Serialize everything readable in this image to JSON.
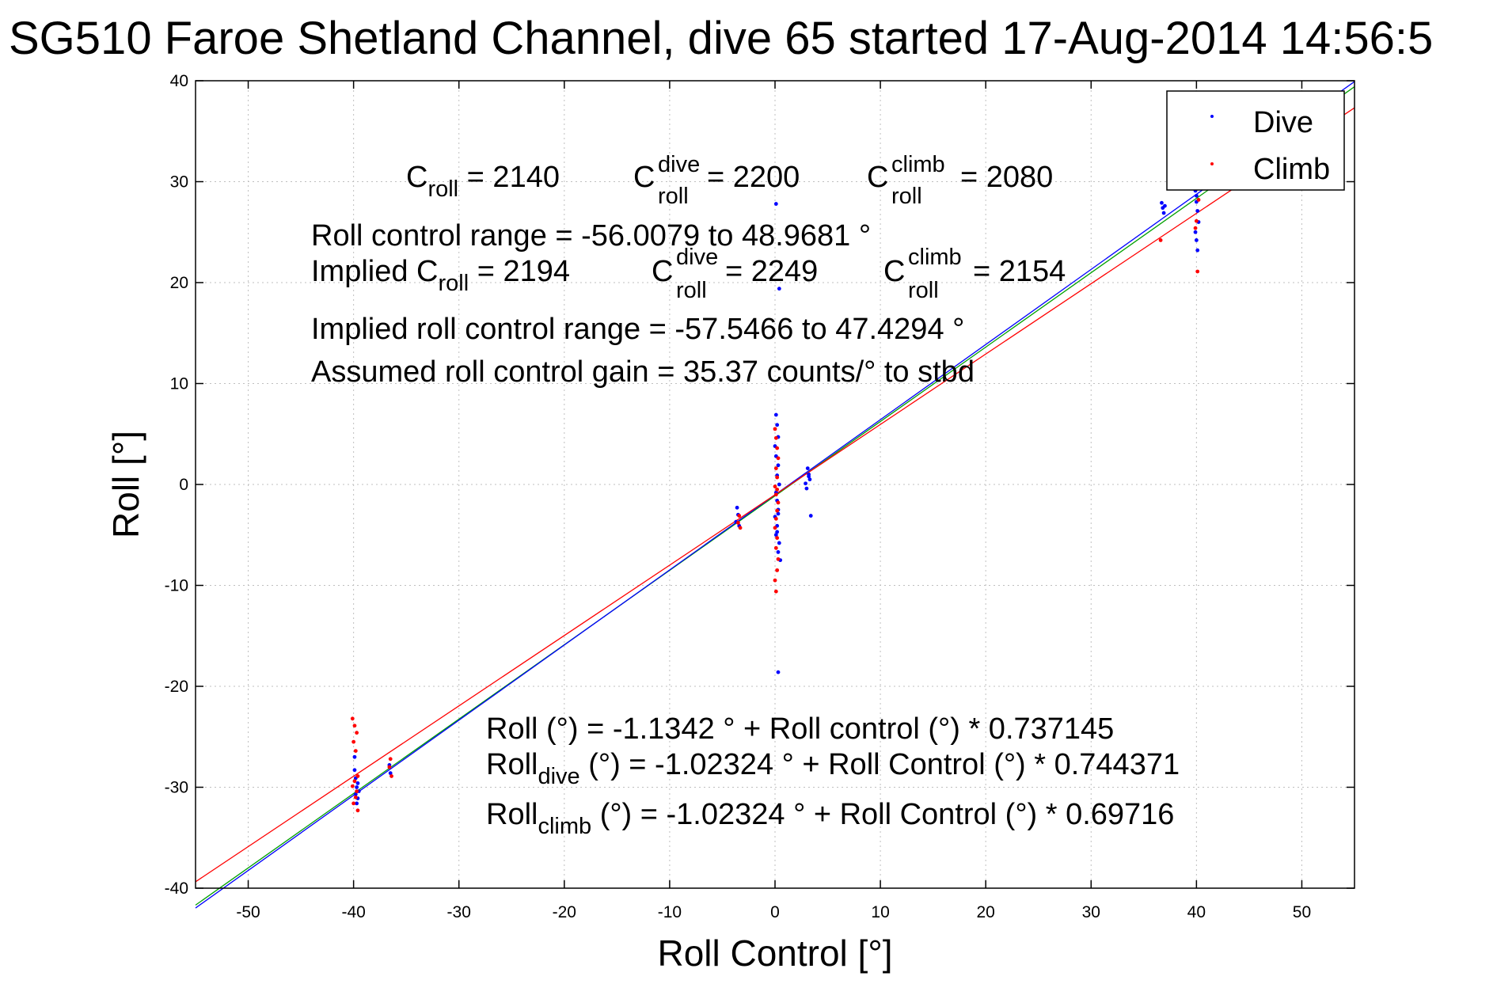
{
  "chart_data": {
    "type": "scatter",
    "title": "SG510 Faroe Shetland Channel, dive 65 started 17-Aug-2014 14:56:5",
    "xlabel": "Roll Control [°]",
    "ylabel": "Roll [°]",
    "xlim": [
      -55,
      55
    ],
    "ylim": [
      -40,
      40
    ],
    "xticks": [
      -50,
      -40,
      -30,
      -20,
      -10,
      0,
      10,
      20,
      30,
      40,
      50
    ],
    "yticks": [
      -40,
      -30,
      -20,
      -10,
      0,
      10,
      20,
      30,
      40
    ],
    "grid": true,
    "legend": {
      "placement": "top-right",
      "entries": [
        "Dive",
        "Climb"
      ]
    },
    "colors": {
      "dive": "#0000ff",
      "climb": "#ff0000",
      "combined_fit": "#00a000"
    },
    "series": [
      {
        "name": "Dive",
        "x": [
          -39.9,
          -39.8,
          -39.6,
          -39.7,
          -39.5,
          -39.8,
          -39.6,
          -39.7,
          -39.9,
          -36.6,
          -36.5,
          -3.6,
          -3.5,
          -3.7,
          -3.4,
          0.1,
          0.2,
          0.3,
          0.0,
          0.1,
          0.3,
          0.2,
          0.4,
          0.1,
          0.2,
          0.3,
          0.0,
          0.2,
          0.1,
          0.4,
          0.3,
          0.5,
          0.2,
          0.3,
          0.1,
          0.4,
          0.3,
          3.1,
          3.2,
          3.3,
          2.9,
          3.0,
          3.4,
          3.2,
          36.7,
          36.8,
          36.9,
          37.0,
          39.8,
          39.9,
          40.0,
          40.1,
          40.2,
          39.9,
          40.0,
          40.1,
          40.0,
          39.9
        ],
        "y": [
          -28.3,
          -29.1,
          -29.6,
          -30.0,
          -30.4,
          -30.7,
          -31.1,
          -31.6,
          -27.0,
          -27.8,
          -28.6,
          -2.3,
          -3.0,
          -3.7,
          -4.1,
          6.9,
          5.9,
          4.7,
          3.8,
          2.8,
          1.9,
          0.9,
          0.0,
          -0.8,
          -1.6,
          -2.5,
          -3.2,
          -4.1,
          -5.0,
          -5.8,
          -6.7,
          -7.5,
          -4.7,
          -2.9,
          27.8,
          19.4,
          -18.6,
          1.6,
          1.0,
          0.5,
          0.1,
          -0.4,
          -3.1,
          0.8,
          27.9,
          27.4,
          26.9,
          27.6,
          31.2,
          29.1,
          28.0,
          27.1,
          26.0,
          25.0,
          24.2,
          23.2,
          28.6,
          30.3
        ]
      },
      {
        "name": "Climb",
        "x": [
          -40.1,
          -39.9,
          -39.7,
          -40.0,
          -39.8,
          -39.6,
          -39.9,
          -40.1,
          -39.7,
          -39.8,
          -40.0,
          -39.6,
          -36.5,
          -36.6,
          -36.4,
          -3.4,
          -3.5,
          -3.3,
          0.0,
          0.1,
          0.2,
          0.3,
          0.1,
          0.2,
          0.0,
          0.1,
          0.3,
          0.2,
          0.1,
          0.0,
          0.2,
          0.1,
          0.3,
          0.2,
          0.0,
          0.1,
          0.2,
          36.6,
          40.1,
          40.0,
          39.9,
          40.2
        ],
        "y": [
          -23.2,
          -23.9,
          -24.6,
          -25.5,
          -26.4,
          -28.9,
          -29.4,
          -29.9,
          -30.4,
          -31.0,
          -31.6,
          -32.3,
          -27.2,
          -28.0,
          -28.9,
          -3.1,
          -3.8,
          -4.3,
          5.5,
          4.6,
          3.6,
          2.6,
          1.6,
          0.7,
          -0.2,
          -1.0,
          -1.8,
          -2.6,
          -3.4,
          -4.3,
          -5.3,
          -6.3,
          -7.4,
          -8.5,
          -9.5,
          -10.6,
          -0.5,
          24.2,
          21.1,
          26.1,
          25.4,
          28.2
        ]
      }
    ],
    "fit_lines": [
      {
        "name": "Roll fit",
        "color": "green",
        "intercept": -1.1342,
        "slope": 0.737145
      },
      {
        "name": "Roll dive fit",
        "color": "blue",
        "intercept": -1.02324,
        "slope": 0.744371
      },
      {
        "name": "Roll climb fit",
        "color": "red",
        "intercept": -1.02324,
        "slope": 0.69716
      }
    ],
    "annotations": {
      "c_roll": {
        "base": "C",
        "sub": "roll",
        "rest": " = 2140"
      },
      "c_roll_dive": {
        "base": "C",
        "sup": "dive",
        "sub": "roll",
        "rest": " = 2200"
      },
      "c_roll_climb": {
        "base": "C",
        "sup": "climb",
        "sub": "roll",
        "rest": " = 2080"
      },
      "roll_control_range": "Roll control range = -56.0079 to 48.9681 °",
      "implied_c_roll": {
        "base": "Implied C",
        "sub": "roll",
        "rest": " = 2194"
      },
      "implied_c_roll_dive": {
        "base": "C",
        "sup": "dive",
        "sub": "roll",
        "rest": " = 2249"
      },
      "implied_c_roll_climb": {
        "base": "C",
        "sup": "climb",
        "sub": "roll",
        "rest": " = 2154"
      },
      "implied_range": "Implied roll control range = -57.5466 to 47.4294 °",
      "assumed_gain": "Assumed roll control gain = 35.37 counts/° to stbd",
      "eq_all": "Roll (°) = -1.1342 ° + Roll control (°) * 0.737145",
      "eq_dive": {
        "base": "Roll",
        "sub": "dive",
        "rest": " (°) = -1.02324 ° + Roll Control (°) * 0.744371"
      },
      "eq_climb": {
        "base": "Roll",
        "sub": "climb",
        "rest": " (°) = -1.02324 ° + Roll Control (°) * 0.69716"
      }
    }
  }
}
